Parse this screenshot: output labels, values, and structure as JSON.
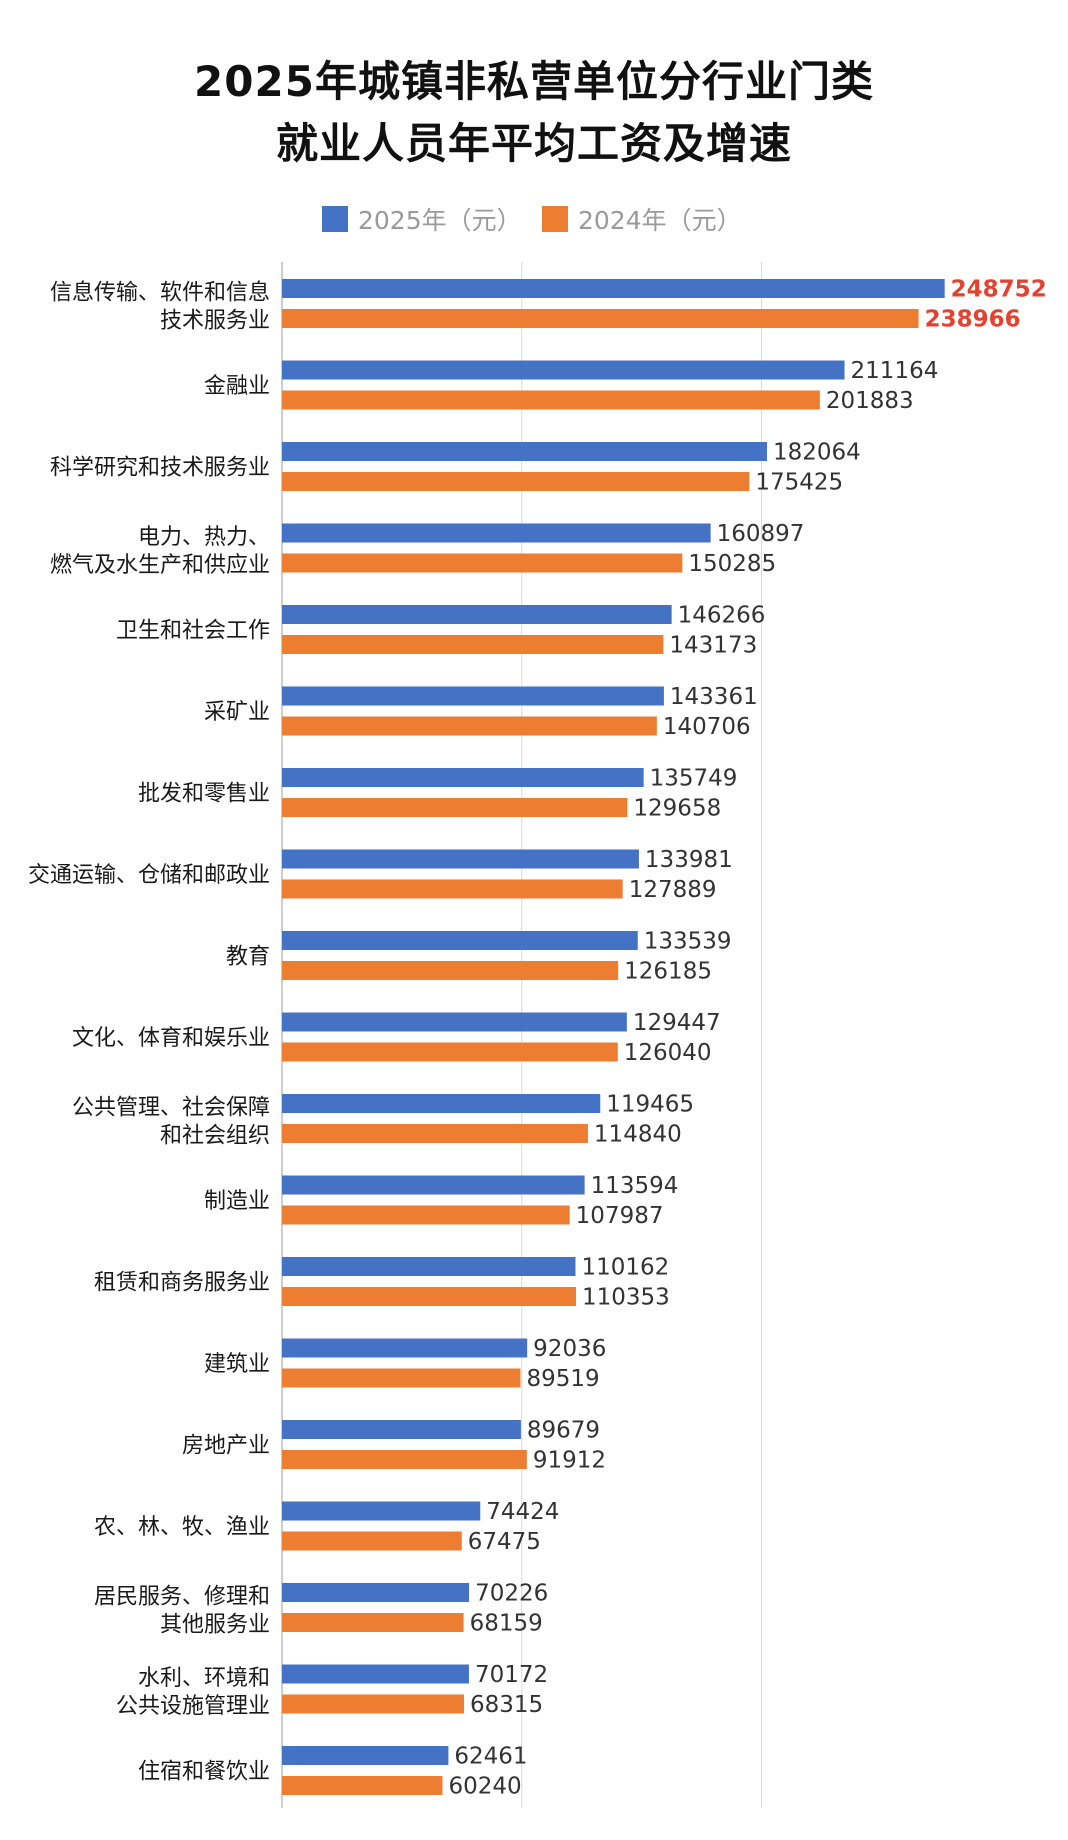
{
  "title": {
    "line1": "2025年城镇非私营单位分行业门类",
    "line2": "就业人员年平均工资及增速"
  },
  "colors": {
    "series_2025": "#4472c4",
    "series_2024": "#ed7d31",
    "highlight_text": "#e2422f",
    "gridline": "#d9d9d9"
  },
  "chart_data": {
    "type": "bar",
    "orientation": "horizontal",
    "title": "2025年城镇非私营单位分行业门类 就业人员年平均工资及增速",
    "legend_position": "top",
    "grid": true,
    "xlim": [
      0,
      250000
    ],
    "categories": [
      [
        "信息传输、软件和信息",
        "技术服务业"
      ],
      [
        "金融业"
      ],
      [
        "科学研究和技术服务业"
      ],
      [
        "电力、热力、",
        "燃气及水生产和供应业"
      ],
      [
        "卫生和社会工作"
      ],
      [
        "采矿业"
      ],
      [
        "批发和零售业"
      ],
      [
        "交通运输、仓储和邮政业"
      ],
      [
        "教育"
      ],
      [
        "文化、体育和娱乐业"
      ],
      [
        "公共管理、社会保障",
        "和社会组织"
      ],
      [
        "制造业"
      ],
      [
        "租赁和商务服务业"
      ],
      [
        "建筑业"
      ],
      [
        "房地产业"
      ],
      [
        "农、林、牧、渔业"
      ],
      [
        "居民服务、修理和",
        "其他服务业"
      ],
      [
        "水利、环境和",
        "公共设施管理业"
      ],
      [
        "住宿和餐饮业"
      ]
    ],
    "series": [
      {
        "name": "2025年（元）",
        "values": [
          248752,
          211164,
          182064,
          160897,
          146266,
          143361,
          135749,
          133981,
          133539,
          129447,
          119465,
          113594,
          110162,
          92036,
          89679,
          74424,
          70226,
          70172,
          62461
        ]
      },
      {
        "name": "2024年（元）",
        "values": [
          238966,
          201883,
          175425,
          150285,
          143173,
          140706,
          129658,
          127889,
          126185,
          126040,
          114840,
          107987,
          110353,
          89519,
          91912,
          67475,
          68159,
          68315,
          60240
        ]
      }
    ],
    "highlighted_category_index": 0
  }
}
